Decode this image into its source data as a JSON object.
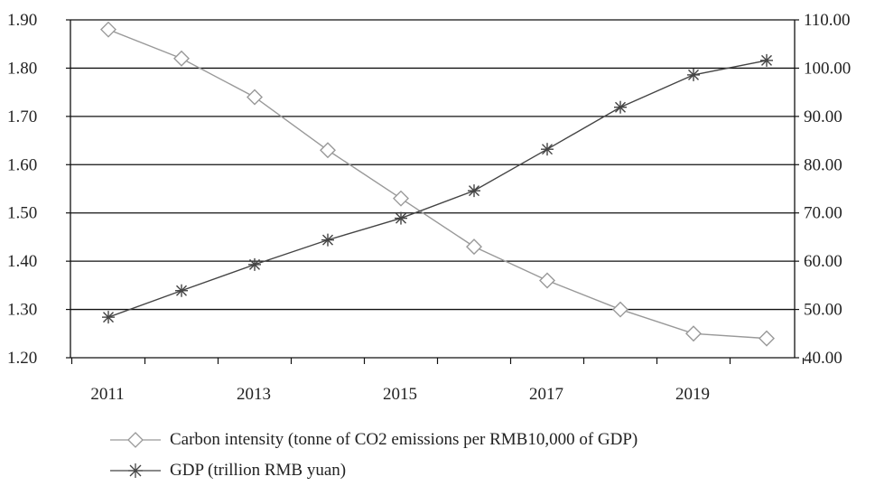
{
  "chart_data": {
    "type": "line",
    "title": "",
    "x": [
      "2011",
      "2012",
      "2013",
      "2014",
      "2015",
      "2016",
      "2017",
      "2018",
      "2019",
      "2020"
    ],
    "x_tick_labels": [
      "2011",
      "2013",
      "2015",
      "2017",
      "2019"
    ],
    "y_left": {
      "ticks": [
        "1.20",
        "1.30",
        "1.40",
        "1.50",
        "1.60",
        "1.70",
        "1.80",
        "1.90"
      ],
      "range": [
        1.2,
        1.9
      ]
    },
    "y_right": {
      "ticks": [
        "40.00",
        "50.00",
        "60.00",
        "70.00",
        "80.00",
        "90.00",
        "100.00",
        "110.00"
      ],
      "range": [
        40,
        110
      ]
    },
    "grid": "horizontal",
    "legend_placement": "bottom",
    "series": [
      {
        "name": "Carbon intensity (tonne of CO2 emissions per RMB10,000 of GDP)",
        "axis": "left",
        "marker": "diamond",
        "color": "#999999",
        "values": [
          1.88,
          1.82,
          1.74,
          1.63,
          1.53,
          1.43,
          1.36,
          1.3,
          1.25,
          1.24
        ]
      },
      {
        "name": "GDP (trillion RMB yuan)",
        "axis": "right",
        "marker": "asterisk",
        "color": "#444444",
        "values": [
          48.4,
          53.9,
          59.3,
          64.4,
          68.9,
          74.6,
          83.2,
          91.9,
          98.6,
          101.6
        ]
      }
    ]
  }
}
